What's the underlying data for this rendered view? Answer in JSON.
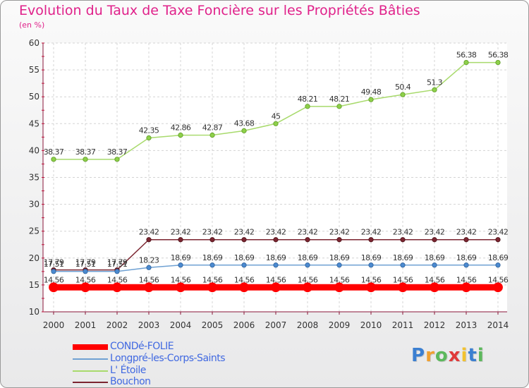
{
  "chart_data": {
    "type": "line",
    "title": "Evolution du Taux de Taxe Foncière sur les Propriétés Bâties",
    "ylabel": "(en %)",
    "xlabel": "",
    "ylim": [
      10,
      60
    ],
    "yticks": [
      10,
      15,
      20,
      25,
      30,
      35,
      40,
      45,
      50,
      55,
      60
    ],
    "categories": [
      "2000",
      "2001",
      "2002",
      "2003",
      "2004",
      "2005",
      "2006",
      "2007",
      "2008",
      "2009",
      "2010",
      "2011",
      "2012",
      "2013",
      "2014"
    ],
    "series": [
      {
        "name": "CONDé-FOLIE",
        "color": "#ff0000",
        "values": [
          14.56,
          14.56,
          14.56,
          14.56,
          14.56,
          14.56,
          14.56,
          14.56,
          14.56,
          14.56,
          14.56,
          14.56,
          14.56,
          14.56,
          14.56
        ],
        "labels": [
          "14.56",
          "14.56",
          "14.56",
          "14.56",
          "14.56",
          "14.56",
          "14.56",
          "14.56",
          "14.56",
          "14.56",
          "14.56",
          "14.56",
          "14.56",
          "14.56",
          "14.56"
        ]
      },
      {
        "name": "Longpré-les-Corps-Saints",
        "color": "#6fa1d3",
        "values": [
          17.51,
          17.51,
          17.51,
          18.23,
          18.69,
          18.69,
          18.69,
          18.69,
          18.69,
          18.69,
          18.69,
          18.69,
          18.69,
          18.69,
          18.69
        ],
        "labels": [
          "17.51",
          "17.51",
          "17.51",
          "18.23",
          "18.69",
          "18.69",
          "18.69",
          "18.69",
          "18.69",
          "18.69",
          "18.69",
          "18.69",
          "18.69",
          "18.69",
          "18.69"
        ]
      },
      {
        "name": "L' Étoile",
        "color": "#a8da6c",
        "values": [
          38.37,
          38.37,
          38.37,
          42.35,
          42.86,
          42.87,
          43.68,
          45,
          48.21,
          48.21,
          49.48,
          50.4,
          51.3,
          56.38,
          56.38
        ],
        "labels": [
          "38.37",
          "38.37",
          "38.37",
          "42.35",
          "42.86",
          "42.87",
          "43.68",
          "45",
          "48.21",
          "48.21",
          "49.48",
          "50.4",
          "51.3",
          "56.38",
          "56.38"
        ]
      },
      {
        "name": "Bouchon",
        "color": "#7b2530",
        "values": [
          17.79,
          17.79,
          17.79,
          23.42,
          23.42,
          23.42,
          23.42,
          23.42,
          23.42,
          23.42,
          23.42,
          23.42,
          23.42,
          23.42,
          23.42
        ],
        "labels": [
          "17.79",
          "17.79",
          "17.79",
          "23.42",
          "23.42",
          "23.42",
          "23.42",
          "23.42",
          "23.42",
          "23.42",
          "23.42",
          "23.42",
          "23.42",
          "23.42",
          "23.42"
        ]
      }
    ]
  },
  "header": {
    "title": "Evolution du Taux de Taxe Foncière sur les Propriétés Bâties",
    "subtitle": "(en %)"
  },
  "legend": [
    {
      "label": "CONDé-FOLIE",
      "color": "#ff0000"
    },
    {
      "label": "Longpré-les-Corps-Saints",
      "color": "#6fa1d3"
    },
    {
      "label": "L' Étoile",
      "color": "#a8da6c"
    },
    {
      "label": "Bouchon",
      "color": "#7b2530"
    }
  ],
  "brand": {
    "letters": [
      "P",
      "r",
      "o",
      "x",
      "i",
      "t",
      "i"
    ],
    "colors": [
      "#3b7fd1",
      "#f0a030",
      "#5cb85c",
      "#e03a3a",
      "#f2c230",
      "#3b7fd1",
      "#5cb85c"
    ]
  }
}
